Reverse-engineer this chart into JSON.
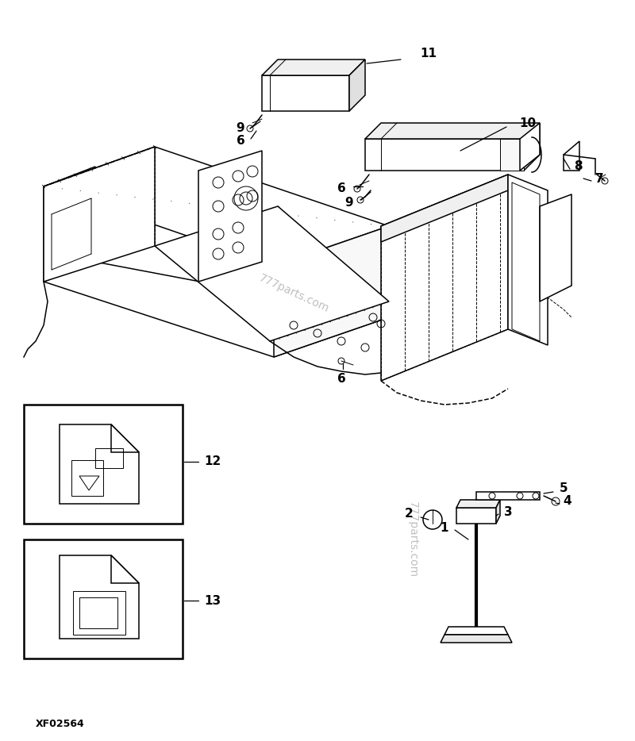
{
  "background_color": "#ffffff",
  "watermark": "777parts.com",
  "footer_code": "XF02564",
  "fig_width": 8.0,
  "fig_height": 9.34,
  "dpi": 100
}
